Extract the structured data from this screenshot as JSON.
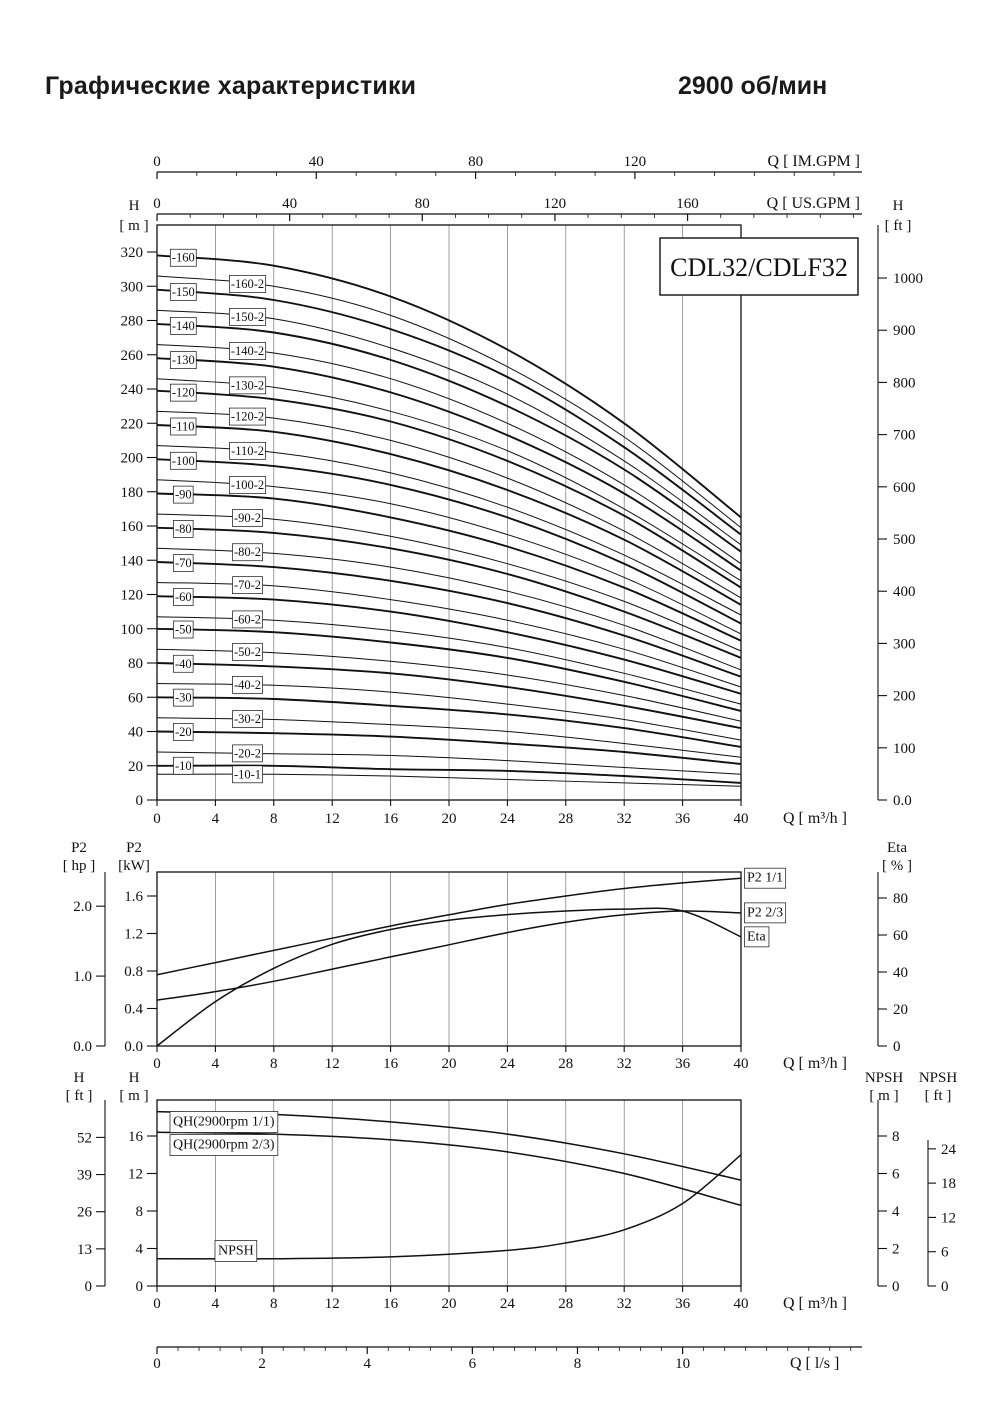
{
  "header": {
    "title": "Графические характеристики",
    "rpm": "2900 об/мин"
  },
  "model_label": "CDL32/CDLF32",
  "chart_data": [
    {
      "id": "qh-multistage",
      "type": "line",
      "title": "CDL32/CDLF32",
      "x_axis": {
        "label": "Q [ m³/h ]",
        "min": 0,
        "max": 40,
        "ticks": [
          0,
          4,
          8,
          12,
          16,
          20,
          24,
          28,
          32,
          36,
          40
        ]
      },
      "top_axis_im": {
        "label": "Q [ IM.GPM ]",
        "ticks": [
          0,
          40,
          80,
          120
        ],
        "gpm_per_m3h": 3.6662,
        "minor_step": 10
      },
      "top_axis_us": {
        "label": "Q [ US.GPM ]",
        "ticks": [
          0,
          40,
          80,
          120,
          160
        ],
        "gpm_per_m3h": 4.4029,
        "minor_step": 10
      },
      "y_left": {
        "title": "H",
        "unit": "[ m ]",
        "min": 0,
        "max": 335,
        "ticks": [
          0,
          20,
          40,
          60,
          80,
          100,
          120,
          140,
          160,
          180,
          200,
          220,
          240,
          260,
          280,
          300,
          320
        ]
      },
      "y_right": {
        "title": "H",
        "unit": "[ ft ]",
        "ticks": [
          "0.0",
          "100",
          "200",
          "300",
          "400",
          "500",
          "600",
          "700",
          "800",
          "900",
          "1000"
        ],
        "ft_per_m": 3.2808
      },
      "q_points": [
        0,
        8,
        16,
        24,
        32,
        40
      ],
      "series": [
        {
          "name": "-160",
          "bold": true,
          "label_q": 1.8,
          "values": [
            318,
            312,
            294,
            263,
            220,
            165
          ]
        },
        {
          "name": "-160-2",
          "bold": false,
          "label_q": 6.2,
          "values": [
            306,
            300,
            283,
            253,
            212,
            159
          ]
        },
        {
          "name": "-150",
          "bold": true,
          "label_q": 1.8,
          "values": [
            298,
            292,
            275,
            247,
            206,
            155
          ]
        },
        {
          "name": "-150-2",
          "bold": false,
          "label_q": 6.2,
          "values": [
            286,
            281,
            264,
            237,
            198,
            149
          ]
        },
        {
          "name": "-140",
          "bold": true,
          "label_q": 1.8,
          "values": [
            278,
            273,
            257,
            230,
            193,
            145
          ]
        },
        {
          "name": "-140-2",
          "bold": false,
          "label_q": 6.2,
          "values": [
            266,
            261,
            246,
            220,
            184,
            138
          ]
        },
        {
          "name": "-130",
          "bold": true,
          "label_q": 1.8,
          "values": [
            258,
            253,
            238,
            213,
            179,
            134
          ]
        },
        {
          "name": "-130-2",
          "bold": false,
          "label_q": 6.2,
          "values": [
            246,
            241,
            227,
            204,
            170,
            128
          ]
        },
        {
          "name": "-120",
          "bold": true,
          "label_q": 1.8,
          "values": [
            239,
            234,
            221,
            198,
            166,
            124
          ]
        },
        {
          "name": "-120-2",
          "bold": false,
          "label_q": 6.2,
          "values": [
            227,
            223,
            210,
            188,
            157,
            118
          ]
        },
        {
          "name": "-110",
          "bold": true,
          "label_q": 1.8,
          "values": [
            219,
            215,
            202,
            181,
            152,
            114
          ]
        },
        {
          "name": "-110-2",
          "bold": false,
          "label_q": 6.2,
          "values": [
            207,
            203,
            191,
            171,
            143,
            108
          ]
        },
        {
          "name": "-100",
          "bold": true,
          "label_q": 1.8,
          "values": [
            199,
            195,
            184,
            165,
            138,
            103
          ]
        },
        {
          "name": "-100-2",
          "bold": false,
          "label_q": 6.2,
          "values": [
            187,
            183,
            173,
            155,
            130,
            97
          ]
        },
        {
          "name": "-90",
          "bold": true,
          "label_q": 1.8,
          "values": [
            179,
            176,
            165,
            148,
            124,
            93
          ]
        },
        {
          "name": "-90-2",
          "bold": false,
          "label_q": 6.2,
          "values": [
            167,
            164,
            154,
            138,
            116,
            87
          ]
        },
        {
          "name": "-80",
          "bold": true,
          "label_q": 1.8,
          "values": [
            159,
            156,
            147,
            132,
            110,
            83
          ]
        },
        {
          "name": "-80-2",
          "bold": false,
          "label_q": 6.2,
          "values": [
            147,
            144,
            136,
            122,
            102,
            76
          ]
        },
        {
          "name": "-70",
          "bold": true,
          "label_q": 1.8,
          "values": [
            139,
            136,
            128,
            115,
            96,
            72
          ]
        },
        {
          "name": "-70-2",
          "bold": false,
          "label_q": 6.2,
          "values": [
            127,
            125,
            117,
            105,
            88,
            66
          ]
        },
        {
          "name": "-60",
          "bold": true,
          "label_q": 1.8,
          "values": [
            119,
            117,
            110,
            98,
            82,
            62
          ]
        },
        {
          "name": "-60-2",
          "bold": false,
          "label_q": 6.2,
          "values": [
            107,
            105,
            99,
            89,
            74,
            56
          ]
        },
        {
          "name": "-50",
          "bold": true,
          "label_q": 1.8,
          "values": [
            100,
            98,
            92,
            83,
            69,
            52
          ]
        },
        {
          "name": "-50-2",
          "bold": false,
          "label_q": 6.2,
          "values": [
            88,
            86,
            81,
            73,
            61,
            46
          ]
        },
        {
          "name": "-40",
          "bold": true,
          "label_q": 1.8,
          "values": [
            80,
            78,
            74,
            66,
            55,
            42
          ]
        },
        {
          "name": "-40-2",
          "bold": false,
          "label_q": 6.2,
          "values": [
            68,
            67,
            63,
            56,
            47,
            35
          ]
        },
        {
          "name": "-30",
          "bold": true,
          "label_q": 1.8,
          "values": [
            60,
            59,
            55,
            50,
            42,
            31
          ]
        },
        {
          "name": "-30-2",
          "bold": false,
          "label_q": 6.2,
          "values": [
            48,
            47,
            44,
            40,
            33,
            25
          ]
        },
        {
          "name": "-20",
          "bold": true,
          "label_q": 1.8,
          "values": [
            40,
            39,
            37,
            33,
            28,
            21
          ]
        },
        {
          "name": "-20-2",
          "bold": false,
          "label_q": 6.2,
          "values": [
            28,
            27,
            26,
            23,
            19,
            15
          ]
        },
        {
          "name": "-10",
          "bold": true,
          "label_q": 1.8,
          "values": [
            20,
            20,
            18,
            17,
            14,
            10
          ]
        },
        {
          "name": "-10-1",
          "bold": false,
          "label_q": 6.2,
          "values": [
            15,
            15,
            14,
            12,
            10,
            8
          ]
        }
      ]
    },
    {
      "id": "power-efficiency",
      "type": "line",
      "x_axis": {
        "label": "Q [ m³/h ]",
        "min": 0,
        "max": 40,
        "ticks": [
          0,
          4,
          8,
          12,
          16,
          20,
          24,
          28,
          32,
          36,
          40
        ]
      },
      "y_hp": {
        "title": "P2",
        "unit": "[ hp ]",
        "ticks": [
          "0.0",
          "1.0",
          "2.0"
        ],
        "kw_per_hp": 0.7457
      },
      "y_kw": {
        "title": "P2",
        "unit": "[kW]",
        "ticks": [
          "0.0",
          "0.4",
          "0.8",
          "1.2",
          "1.6"
        ]
      },
      "y_eta": {
        "title": "Eta",
        "unit": "[ % ]",
        "ticks": [
          0,
          20,
          40,
          60,
          80
        ]
      },
      "q_points": [
        0,
        4,
        8,
        12,
        16,
        20,
        24,
        28,
        32,
        36,
        40
      ],
      "series": [
        {
          "name": "P2 1/1",
          "axis": "kw",
          "values": [
            0.76,
            0.89,
            1.02,
            1.15,
            1.28,
            1.4,
            1.51,
            1.6,
            1.68,
            1.74,
            1.79
          ]
        },
        {
          "name": "P2 2/3",
          "axis": "kw",
          "values": [
            0.49,
            0.58,
            0.69,
            0.82,
            0.95,
            1.08,
            1.21,
            1.32,
            1.4,
            1.44,
            1.42
          ]
        },
        {
          "name": "Eta",
          "axis": "eta",
          "values": [
            0,
            24,
            42,
            55,
            63,
            68,
            71,
            73,
            74,
            73,
            59
          ]
        }
      ]
    },
    {
      "id": "qh-npsh",
      "type": "line",
      "x_axis": {
        "label": "Q [ m³/h ]",
        "min": 0,
        "max": 40,
        "ticks": [
          0,
          4,
          8,
          12,
          16,
          20,
          24,
          28,
          32,
          36,
          40
        ]
      },
      "ls_axis": {
        "label": "Q [ l/s ]",
        "ticks": [
          0,
          2,
          4,
          6,
          8,
          10
        ],
        "m3h_per_ls": 3.6,
        "minor_step": 0.4
      },
      "y_ft": {
        "title": "H",
        "unit": "[ ft ]",
        "ticks": [
          0,
          13,
          26,
          39,
          52
        ],
        "ft_per_m": 3.2808
      },
      "y_m": {
        "title": "H",
        "unit": "[ m ]",
        "ticks": [
          0,
          4,
          8,
          12,
          16
        ]
      },
      "y_npsh_m": {
        "title": "NPSH",
        "unit": "[ m ]",
        "ticks": [
          0,
          2,
          4,
          6,
          8
        ]
      },
      "y_npsh_ft": {
        "title": "NPSH",
        "unit": "[ ft ]",
        "ticks": [
          0,
          6,
          12,
          18,
          24
        ],
        "ft_per_m": 3.2808
      },
      "series": [
        {
          "name": "QH(2900rpm 1/1)",
          "axis": "m",
          "q": [
            0,
            8,
            16,
            24,
            32,
            40
          ],
          "values": [
            18.6,
            18.3,
            17.5,
            16.2,
            14.1,
            11.3
          ]
        },
        {
          "name": "QH(2900rpm 2/3)",
          "axis": "m",
          "q": [
            0,
            8,
            16,
            24,
            32,
            40
          ],
          "values": [
            16.4,
            16.2,
            15.6,
            14.3,
            12,
            8.6
          ]
        },
        {
          "name": "NPSH",
          "axis": "npsh_m",
          "q": [
            0,
            8,
            16,
            24,
            28,
            32,
            36,
            40
          ],
          "values": [
            1.45,
            1.45,
            1.55,
            1.9,
            2.3,
            3,
            4.4,
            7
          ]
        }
      ]
    }
  ]
}
